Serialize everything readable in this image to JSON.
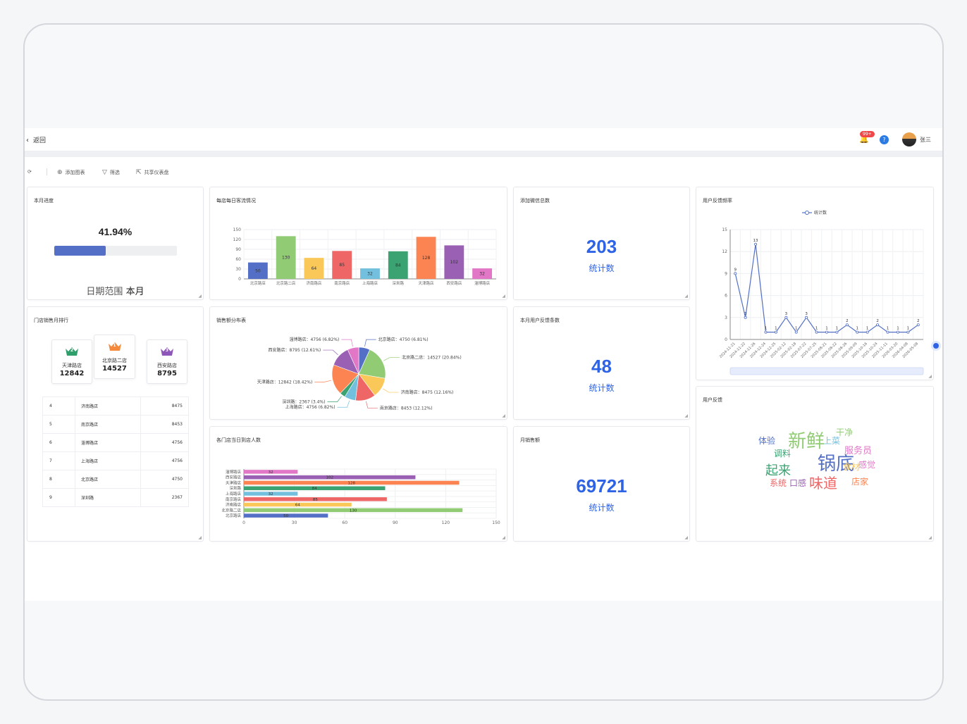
{
  "topbar": {
    "back_label": "返回",
    "back_arrow": "‹",
    "notification_count": "99+",
    "user_name": "张三",
    "bell_icon": "🔔",
    "help_icon": "?"
  },
  "toolbar": {
    "refresh_icon": "⟳",
    "add_chart_label": "添加图表",
    "add_chart_icon": "⊕",
    "filter_label": "筛选",
    "filter_icon": "▽",
    "share_label": "共享仪表盘",
    "share_icon": "⇱"
  },
  "progress": {
    "title": "本月进度",
    "percent_text": "41.94%",
    "percent": 41.94,
    "bar_color": "#5470c6",
    "date_range_label": "日期范围",
    "date_range_value": "本月"
  },
  "daily_traffic": {
    "title": "每店每日客流情况"
  },
  "wechat_total": {
    "title": "添加微信总数",
    "value": "203",
    "label": "统计数"
  },
  "feedback_freq": {
    "title": "用户反馈频率",
    "legend": "统计数"
  },
  "store_rank": {
    "title": "门店销售月排行",
    "top3": [
      {
        "rank": "2",
        "name": "天津路店",
        "value": "12842",
        "crown_color": "#2e9e6a"
      },
      {
        "rank": "1",
        "name": "北京路二店",
        "value": "14527",
        "crown_color": "#f58a3c"
      },
      {
        "rank": "3",
        "name": "西安路店",
        "value": "8795",
        "crown_color": "#8e56b8"
      }
    ],
    "rows": [
      {
        "rank": "4",
        "name": "济南路店",
        "value": "8475"
      },
      {
        "rank": "5",
        "name": "南京路店",
        "value": "8453"
      },
      {
        "rank": "6",
        "name": "淄博路店",
        "value": "4756"
      },
      {
        "rank": "7",
        "name": "上海路店",
        "value": "4756"
      },
      {
        "rank": "8",
        "name": "北京路店",
        "value": "4750"
      },
      {
        "rank": "9",
        "name": "深圳路",
        "value": "2367"
      }
    ]
  },
  "sales_dist": {
    "title": "销售额分布表"
  },
  "month_feedback": {
    "title": "本月用户反馈条数",
    "value": "48",
    "label": "统计数"
  },
  "daily_visitors": {
    "title": "各门店当日到店人数"
  },
  "monthly_sales": {
    "title": "月销售额",
    "value": "69721",
    "label": "统计数"
  },
  "user_feedback": {
    "title": "用户反馈",
    "words": [
      {
        "t": "新鲜",
        "s": 26,
        "c": "#91cc75"
      },
      {
        "t": "锅底",
        "s": 26,
        "c": "#5470c6"
      },
      {
        "t": "味道",
        "s": 20,
        "c": "#ee6666"
      },
      {
        "t": "起来",
        "s": 18,
        "c": "#3ba272"
      },
      {
        "t": "服务员",
        "s": 13,
        "c": "#e277c7"
      },
      {
        "t": "调料",
        "s": 12,
        "c": "#3ba272"
      },
      {
        "t": "体验",
        "s": 12,
        "c": "#5470c6"
      },
      {
        "t": "干净",
        "s": 12,
        "c": "#91cc75"
      },
      {
        "t": "上菜",
        "s": 12,
        "c": "#73c0de"
      },
      {
        "t": "食材",
        "s": 12,
        "c": "#fac858"
      },
      {
        "t": "感觉",
        "s": 12,
        "c": "#e277c7"
      },
      {
        "t": "店家",
        "s": 12,
        "c": "#fc8452"
      },
      {
        "t": "系统",
        "s": 12,
        "c": "#ee6666"
      },
      {
        "t": "口感",
        "s": 12,
        "c": "#9a60b4"
      }
    ]
  },
  "chart_data": [
    {
      "type": "bar",
      "title": "每店每日客流情况",
      "categories": [
        "北京路店",
        "北京路二店",
        "济南路店",
        "南京路店",
        "上海路店",
        "深圳路",
        "天津路店",
        "西安路店",
        "淄博路店"
      ],
      "values": [
        50,
        130,
        64,
        85,
        32,
        84,
        128,
        102,
        32
      ],
      "colors": [
        "#5470c6",
        "#91cc75",
        "#fac858",
        "#ee6666",
        "#73c0de",
        "#3ba272",
        "#fc8452",
        "#9a60b4",
        "#e277c7"
      ],
      "yticks": [
        0,
        30,
        60,
        90,
        120,
        150
      ],
      "ylim": [
        0,
        150
      ]
    },
    {
      "type": "line",
      "title": "用户反馈频率",
      "series": [
        {
          "name": "统计数"
        }
      ],
      "x": [
        "2024-11-21",
        "2024-11-22",
        "2024-11-26",
        "2024-12-24",
        "2024-12-25",
        "2025-02-12",
        "2025-02-18",
        "2025-07-22",
        "2025-07-25",
        "2025-08-21",
        "2025-08-22",
        "2025-08-26",
        "2025-09-09",
        "2025-10-16",
        "2025-10-24",
        "2025-11-11",
        "2026-03-20",
        "2026-04-08",
        "2026-05-08"
      ],
      "values": [
        9,
        3,
        13,
        1,
        1,
        3,
        1,
        3,
        1,
        1,
        1,
        2,
        1,
        1,
        2,
        1,
        1,
        1,
        2
      ],
      "yticks": [
        0,
        3,
        6,
        9,
        12,
        15
      ],
      "ylim": [
        0,
        15
      ]
    },
    {
      "type": "pie",
      "title": "销售额分布表",
      "slices": [
        {
          "name": "北京路店",
          "value": 4750,
          "label": "北京路店：4750 (6.81%)",
          "color": "#5470c6"
        },
        {
          "name": "北京路二店",
          "value": 14527,
          "label": "北京路二店：14527 (20.84%)",
          "color": "#91cc75"
        },
        {
          "name": "济南路店",
          "value": 8475,
          "label": "济南路店：8475 (12.16%)",
          "color": "#fac858"
        },
        {
          "name": "南京路店",
          "value": 8453,
          "label": "南京路店：8453 (12.12%)",
          "color": "#ee6666"
        },
        {
          "name": "上海路店",
          "value": 4756,
          "label": "上海路店：4756 (6.82%)",
          "color": "#73c0de"
        },
        {
          "name": "深圳路",
          "value": 2367,
          "label": "深圳路：2367 (3.4%)",
          "color": "#3ba272"
        },
        {
          "name": "天津路店",
          "value": 12842,
          "label": "天津路店：12842 (18.42%)",
          "color": "#fc8452"
        },
        {
          "name": "西安路店",
          "value": 8795,
          "label": "西安路店：8795 (12.61%)",
          "color": "#9a60b4"
        },
        {
          "name": "淄博路店",
          "value": 4756,
          "label": "淄博路店：4756 (6.82%)",
          "color": "#e277c7"
        }
      ]
    },
    {
      "type": "bar",
      "title": "各门店当日到店人数",
      "orientation": "horizontal",
      "categories": [
        "北京路店",
        "北京路二店",
        "济南路店",
        "南京路店",
        "上海路店",
        "深圳路",
        "天津路店",
        "西安路店",
        "淄博路店"
      ],
      "values": [
        50,
        130,
        64,
        85,
        32,
        84,
        128,
        102,
        32
      ],
      "colors": [
        "#5470c6",
        "#91cc75",
        "#fac858",
        "#ee6666",
        "#73c0de",
        "#3ba272",
        "#fc8452",
        "#9a60b4",
        "#e277c7"
      ],
      "xticks": [
        0,
        30,
        60,
        90,
        120,
        150
      ],
      "xlim": [
        0,
        150
      ]
    }
  ]
}
